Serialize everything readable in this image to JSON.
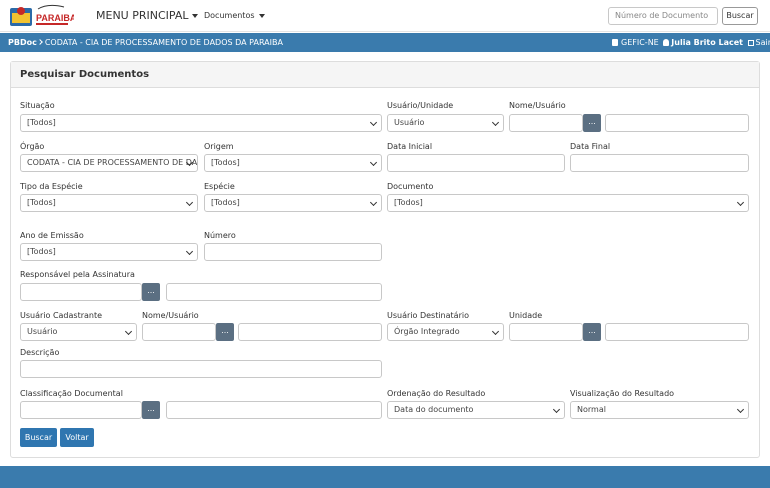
{
  "header": {
    "logo_text": "PARAIBA",
    "menu": [
      "MENU PRINCIPAL",
      "Documentos"
    ],
    "search_placeholder": "Número de Documento",
    "search_button": "Buscar"
  },
  "breadcrumb": {
    "app": "PBDoc",
    "org": "CODATA - CIA DE PROCESSAMENTO DE DADOS DA PARAIBA",
    "unit": "GEFIC-NE",
    "user": "Julia Brito Lacet",
    "logout": "Sair"
  },
  "panel": {
    "title": "Pesquisar Documentos",
    "lookup": "...",
    "fields": [
      {
        "label": "Situação",
        "value": "[Todos]"
      },
      {
        "label": "Usuário/Unidade",
        "value": "Usuário"
      },
      {
        "label": "Nome/Usuário"
      },
      {
        "label": "Órgão",
        "value": "CODATA - CIA DE PROCESSAMENTO DE DA"
      },
      {
        "label": "Origem",
        "value": "[Todos]"
      },
      {
        "label": "Data Inicial"
      },
      {
        "label": "Data Final"
      },
      {
        "label": "Tipo da Espécie",
        "value": "[Todos]"
      },
      {
        "label": "Espécie",
        "value": "[Todos]"
      },
      {
        "label": "Documento",
        "value": "[Todos]"
      },
      {
        "label": "Ano de Emissão",
        "value": "[Todos]"
      },
      {
        "label": "Número"
      },
      {
        "label": "Responsável pela Assinatura"
      },
      {
        "label": "Usuário Cadastrante",
        "value": "Usuário"
      },
      {
        "label": "Nome/Usuário"
      },
      {
        "label": "Usuário Destinatário",
        "value": "Órgão Integrado"
      },
      {
        "label": "Unidade"
      },
      {
        "label": "Descrição"
      },
      {
        "label": "Classificação Documental"
      },
      {
        "label": "Ordenação do Resultado",
        "value": "Data do documento"
      },
      {
        "label": "Visualização do Resultado",
        "value": "Normal"
      }
    ],
    "buttons": [
      "Buscar",
      "Voltar"
    ]
  }
}
